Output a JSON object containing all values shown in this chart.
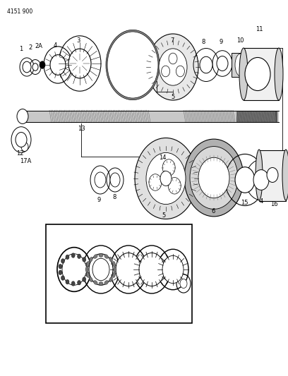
{
  "page_id": "4151 900",
  "bg_color": "#ffffff",
  "line_color": "#000000",
  "fig_width": 4.08,
  "fig_height": 5.33,
  "dpi": 100
}
